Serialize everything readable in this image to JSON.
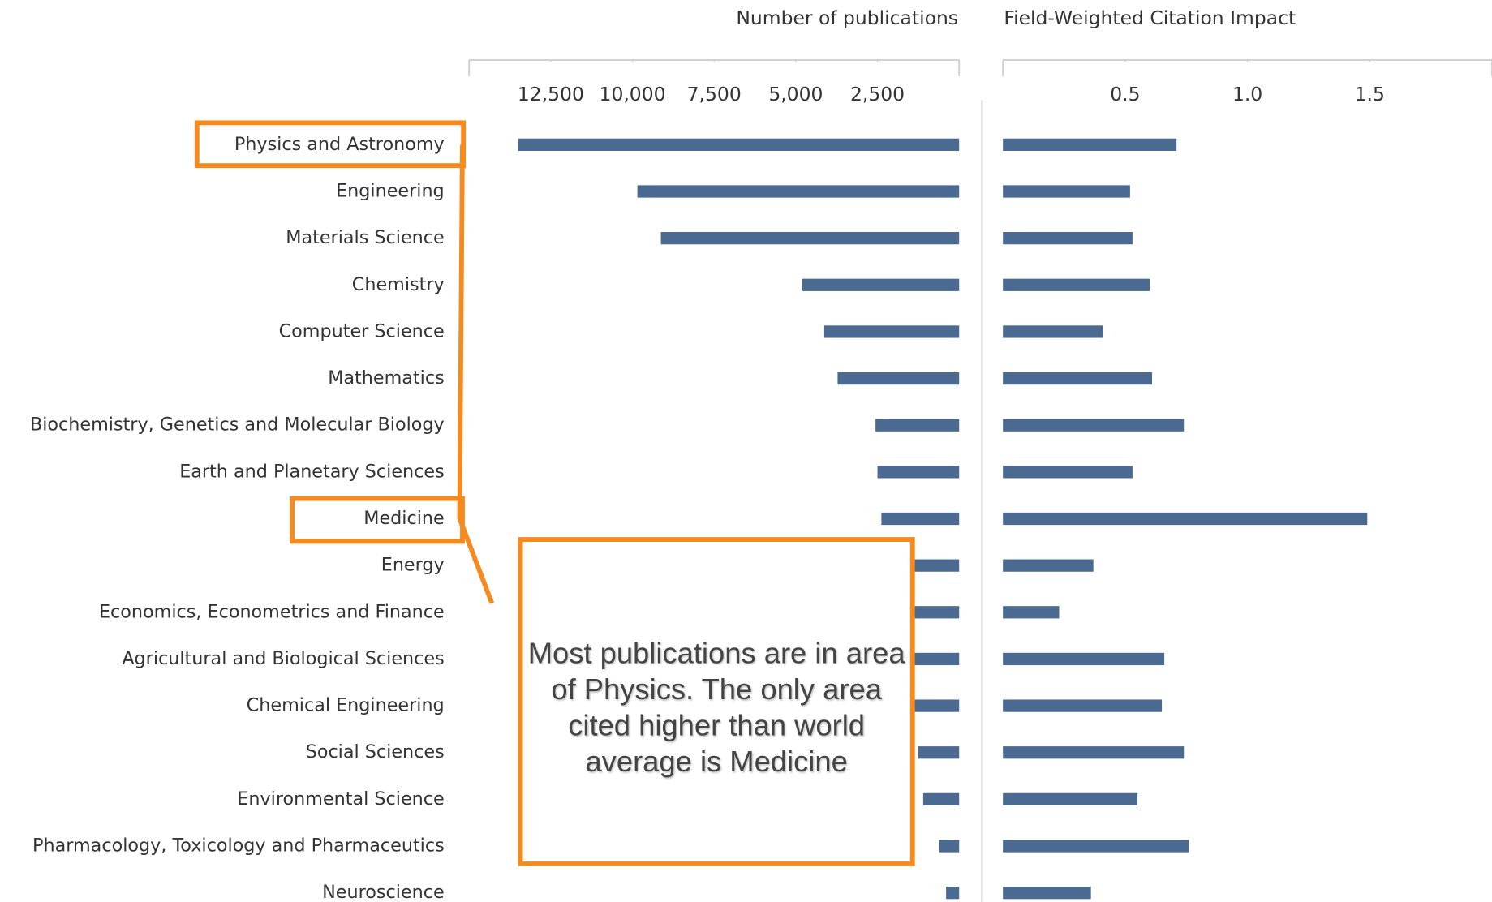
{
  "chart_data": [
    {
      "type": "bar",
      "orientation": "horizontal",
      "x_reversed": true,
      "xlabel": "Number of publications",
      "categories": [
        "Physics and Astronomy",
        "Engineering",
        "Materials Science",
        "Chemistry",
        "Computer Science",
        "Mathematics",
        "Biochemistry, Genetics and Molecular Biology",
        "Earth and Planetary Sciences",
        "Medicine",
        "Energy",
        "Economics, Econometrics and Finance",
        "Agricultural and Biological Sciences",
        "Chemical Engineering",
        "Social Sciences",
        "Environmental Science",
        "Pharmacology, Toxicology and Pharmaceutics",
        "Neuroscience"
      ],
      "values": [
        13500,
        9850,
        9130,
        4800,
        4130,
        3720,
        2560,
        2500,
        2380,
        2240,
        1980,
        1630,
        1450,
        1250,
        1100,
        610,
        400
      ],
      "color": "#4a6a92",
      "xlim": [
        0,
        15000
      ],
      "xticks": [
        {
          "value": 2500,
          "label": "2,500"
        },
        {
          "value": 5000,
          "label": "5,000"
        },
        {
          "value": 7500,
          "label": "7,500"
        },
        {
          "value": 10000,
          "label": "10,000"
        },
        {
          "value": 12500,
          "label": "12,500"
        }
      ]
    },
    {
      "type": "bar",
      "orientation": "horizontal",
      "x_reversed": false,
      "xlabel": "Field-Weighted Citation Impact",
      "values": [
        0.71,
        0.52,
        0.53,
        0.6,
        0.41,
        0.61,
        0.74,
        0.53,
        1.49,
        0.37,
        0.23,
        0.66,
        0.65,
        0.74,
        0.55,
        0.76,
        0.36
      ],
      "color": "#4a6a92",
      "xlim": [
        0,
        2
      ],
      "xticks": [
        {
          "value": 0.5,
          "label": "0.5"
        },
        {
          "value": 1.0,
          "label": "1.0"
        },
        {
          "value": 1.5,
          "label": "1.5"
        }
      ]
    }
  ],
  "annotation": "Most publications are in area of Physics. The only area cited higher than world average is Medicine"
}
